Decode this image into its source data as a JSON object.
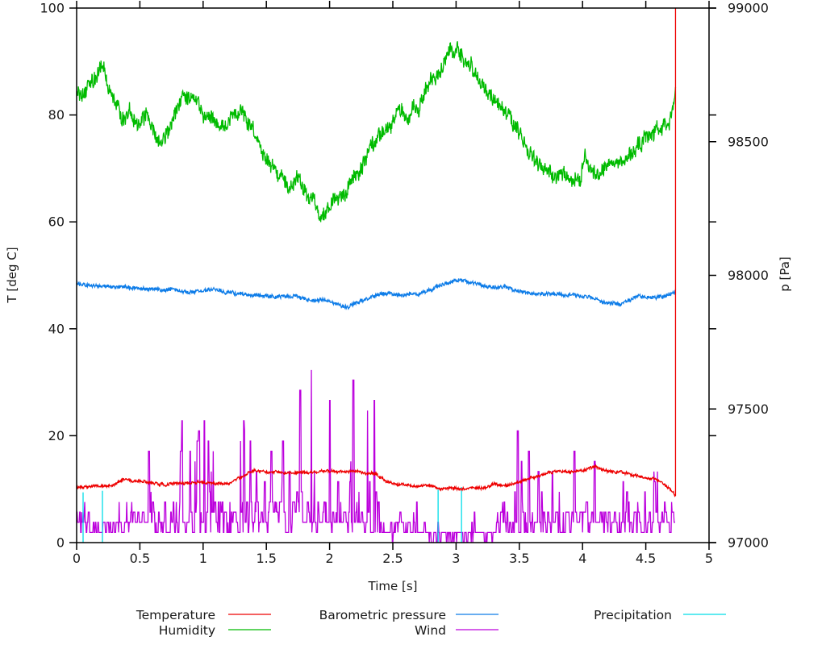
{
  "figure": {
    "background": "#ffffff",
    "text_color": "#1a1a1a",
    "axis_color": "#000000"
  },
  "chart_data": {
    "type": "line",
    "title": "",
    "xlabel": "Time [s]",
    "ylabel_left": "T [deg C]",
    "ylabel_right": "p [Pa]",
    "x_range": [
      0,
      5
    ],
    "x_ticks": [
      0,
      0.5,
      1,
      1.5,
      2,
      2.5,
      3,
      3.5,
      4,
      4.5,
      5
    ],
    "y_left_range": [
      0,
      100
    ],
    "y_left_ticks": [
      0,
      20,
      40,
      60,
      80,
      100
    ],
    "y_right_range": [
      97000,
      99000
    ],
    "y_right_ticks": [
      97000,
      97500,
      98000,
      98500,
      99000
    ],
    "grid": false,
    "legend_position": "below",
    "x_data_end": 4.735,
    "series": [
      {
        "name": "Wind",
        "color": "#bc00dd",
        "axis": "left",
        "render": "spiky",
        "seed": 1337,
        "dt": 0.004,
        "quantum": 1.9,
        "spike_prob": 0.3,
        "segments": [
          [
            0.0,
            0.1,
            3.5,
            9,
            0.25
          ],
          [
            0.1,
            0.35,
            2.5,
            8,
            0.2
          ],
          [
            0.35,
            0.42,
            3.0,
            26,
            0.1
          ],
          [
            0.42,
            0.62,
            4.5,
            24,
            0.22
          ],
          [
            0.62,
            0.75,
            3.0,
            18,
            0.18
          ],
          [
            0.75,
            1.0,
            5.0,
            34,
            0.26
          ],
          [
            1.0,
            1.3,
            4.5,
            20,
            0.24
          ],
          [
            1.3,
            1.62,
            5.0,
            21,
            0.26
          ],
          [
            1.62,
            1.8,
            5.5,
            28,
            0.26
          ],
          [
            1.8,
            2.12,
            5.0,
            30,
            0.24
          ],
          [
            2.12,
            2.42,
            4.5,
            28,
            0.22
          ],
          [
            2.42,
            2.6,
            2.5,
            14,
            0.15
          ],
          [
            2.6,
            2.8,
            2.0,
            9,
            0.15
          ],
          [
            2.8,
            3.08,
            1.2,
            5,
            0.12
          ],
          [
            3.08,
            3.32,
            1.8,
            13,
            0.12
          ],
          [
            3.32,
            3.52,
            3.5,
            23,
            0.18
          ],
          [
            3.52,
            4.0,
            4.0,
            19,
            0.22
          ],
          [
            4.0,
            4.35,
            4.0,
            18,
            0.22
          ],
          [
            4.35,
            4.6,
            3.5,
            17,
            0.18
          ],
          [
            4.6,
            4.735,
            3.5,
            9,
            0.22
          ]
        ]
      },
      {
        "name": "Precipitation",
        "color": "#00dde8",
        "axis": "left",
        "render": "impulses",
        "impulses": [
          [
            0.051,
            9.4
          ],
          [
            0.204,
            9.7
          ],
          [
            2.858,
            9.9
          ],
          [
            3.043,
            10.4
          ]
        ]
      },
      {
        "name": "Humidity",
        "color": "#00bb00",
        "axis": "left",
        "render": "noisy-line",
        "seed": 424242,
        "points": 1450,
        "walk": 1.0,
        "damp": 0.92,
        "jitter": 2.6,
        "keypoints": [
          [
            0,
            84.5
          ],
          [
            0.07,
            85.5
          ],
          [
            0.13,
            86
          ],
          [
            0.2,
            89.8
          ],
          [
            0.24,
            87
          ],
          [
            0.3,
            84
          ],
          [
            0.36,
            79
          ],
          [
            0.42,
            81
          ],
          [
            0.45,
            78.5
          ],
          [
            0.5,
            77.5
          ],
          [
            0.55,
            80
          ],
          [
            0.6,
            78
          ],
          [
            0.65,
            76
          ],
          [
            0.68,
            74
          ],
          [
            0.72,
            77
          ],
          [
            0.8,
            81.5
          ],
          [
            0.88,
            83
          ],
          [
            0.95,
            82.5
          ],
          [
            1.0,
            80
          ],
          [
            1.05,
            81
          ],
          [
            1.1,
            79.5
          ],
          [
            1.18,
            79
          ],
          [
            1.25,
            80.5
          ],
          [
            1.32,
            80.5
          ],
          [
            1.38,
            78
          ],
          [
            1.45,
            74
          ],
          [
            1.52,
            71
          ],
          [
            1.6,
            68.5
          ],
          [
            1.68,
            67
          ],
          [
            1.75,
            67.5
          ],
          [
            1.82,
            64.5
          ],
          [
            1.88,
            62
          ],
          [
            1.93,
            60
          ],
          [
            1.97,
            60.5
          ],
          [
            2.02,
            63
          ],
          [
            2.1,
            65
          ],
          [
            2.18,
            67.5
          ],
          [
            2.25,
            70
          ],
          [
            2.32,
            73.5
          ],
          [
            2.4,
            75.5
          ],
          [
            2.47,
            77
          ],
          [
            2.55,
            81
          ],
          [
            2.62,
            80
          ],
          [
            2.68,
            81
          ],
          [
            2.75,
            84
          ],
          [
            2.82,
            86.5
          ],
          [
            2.88,
            88.5
          ],
          [
            2.95,
            91
          ],
          [
            3.0,
            92
          ],
          [
            3.05,
            90.5
          ],
          [
            3.12,
            88.5
          ],
          [
            3.2,
            86
          ],
          [
            3.28,
            84
          ],
          [
            3.36,
            82
          ],
          [
            3.42,
            80
          ],
          [
            3.5,
            75.5
          ],
          [
            3.55,
            74
          ],
          [
            3.62,
            72
          ],
          [
            3.7,
            70
          ],
          [
            3.78,
            68.5
          ],
          [
            3.85,
            69.5
          ],
          [
            3.92,
            68
          ],
          [
            3.98,
            67.5
          ],
          [
            4.02,
            73
          ],
          [
            4.06,
            69
          ],
          [
            4.12,
            68
          ],
          [
            4.2,
            70
          ],
          [
            4.28,
            71
          ],
          [
            4.35,
            72
          ],
          [
            4.42,
            73.5
          ],
          [
            4.48,
            75
          ],
          [
            4.55,
            76
          ],
          [
            4.6,
            77
          ],
          [
            4.65,
            78
          ],
          [
            4.68,
            77.5
          ],
          [
            4.71,
            80
          ],
          [
            4.735,
            84.5
          ]
        ]
      },
      {
        "name": "Barometric pressure",
        "color": "#0d7ce8",
        "axis": "right",
        "render": "noisy-line",
        "seed": 98765,
        "points": 1450,
        "walk": 3.5,
        "damp": 0.9,
        "jitter": 13,
        "keypoints": [
          [
            0,
            97966
          ],
          [
            0.2,
            97960
          ],
          [
            0.4,
            97955
          ],
          [
            0.55,
            97950
          ],
          [
            0.7,
            97945
          ],
          [
            0.9,
            97938
          ],
          [
            1.0,
            97942
          ],
          [
            1.08,
            97948
          ],
          [
            1.15,
            97940
          ],
          [
            1.3,
            97928
          ],
          [
            1.45,
            97925
          ],
          [
            1.6,
            97920
          ],
          [
            1.75,
            97925
          ],
          [
            1.85,
            97900
          ],
          [
            1.95,
            97910
          ],
          [
            2.05,
            97895
          ],
          [
            2.15,
            97885
          ],
          [
            2.25,
            97905
          ],
          [
            2.33,
            97915
          ],
          [
            2.42,
            97932
          ],
          [
            2.55,
            97928
          ],
          [
            2.7,
            97932
          ],
          [
            2.8,
            97945
          ],
          [
            2.88,
            97962
          ],
          [
            2.95,
            97975
          ],
          [
            3.02,
            97985
          ],
          [
            3.1,
            97975
          ],
          [
            3.2,
            97965
          ],
          [
            3.3,
            97955
          ],
          [
            3.42,
            97952
          ],
          [
            3.5,
            97940
          ],
          [
            3.6,
            97935
          ],
          [
            3.68,
            97930
          ],
          [
            3.75,
            97935
          ],
          [
            3.85,
            97925
          ],
          [
            3.95,
            97928
          ],
          [
            4.05,
            97920
          ],
          [
            4.15,
            97900
          ],
          [
            4.22,
            97895
          ],
          [
            4.3,
            97890
          ],
          [
            4.4,
            97915
          ],
          [
            4.45,
            97925
          ],
          [
            4.5,
            97920
          ],
          [
            4.6,
            97915
          ],
          [
            4.65,
            97920
          ],
          [
            4.7,
            97935
          ],
          [
            4.735,
            97945
          ]
        ]
      },
      {
        "name": "Temperature",
        "color": "#ee0000",
        "axis": "left",
        "render": "noisy-line",
        "seed": 31415,
        "points": 1450,
        "walk": 0.18,
        "damp": 0.9,
        "jitter": 0.45,
        "end_spike": {
          "x": 4.735,
          "to": 100
        },
        "keypoints": [
          [
            0,
            10.4
          ],
          [
            0.15,
            10.6
          ],
          [
            0.3,
            10.8
          ],
          [
            0.38,
            11.9
          ],
          [
            0.45,
            11.6
          ],
          [
            0.55,
            11.4
          ],
          [
            0.65,
            10.9
          ],
          [
            0.8,
            11.0
          ],
          [
            0.95,
            11.3
          ],
          [
            1.1,
            11.1
          ],
          [
            1.2,
            11.3
          ],
          [
            1.3,
            12.2
          ],
          [
            1.4,
            13.4
          ],
          [
            1.5,
            13.1
          ],
          [
            1.6,
            13.3
          ],
          [
            1.7,
            12.9
          ],
          [
            1.8,
            13.2
          ],
          [
            1.95,
            13.4
          ],
          [
            2.1,
            13.3
          ],
          [
            2.2,
            13.5
          ],
          [
            2.3,
            13.1
          ],
          [
            2.38,
            12.6
          ],
          [
            2.45,
            11.3
          ],
          [
            2.52,
            10.9
          ],
          [
            2.65,
            10.6
          ],
          [
            2.8,
            10.5
          ],
          [
            2.95,
            10.0
          ],
          [
            3.1,
            10.0
          ],
          [
            3.2,
            10.3
          ],
          [
            3.3,
            11.0
          ],
          [
            3.4,
            10.6
          ],
          [
            3.5,
            11.2
          ],
          [
            3.6,
            12.3
          ],
          [
            3.7,
            12.8
          ],
          [
            3.8,
            13.4
          ],
          [
            3.9,
            13.2
          ],
          [
            4.0,
            13.3
          ],
          [
            4.1,
            14.2
          ],
          [
            4.2,
            13.4
          ],
          [
            4.3,
            13.2
          ],
          [
            4.42,
            12.4
          ],
          [
            4.55,
            11.9
          ],
          [
            4.62,
            11.3
          ],
          [
            4.68,
            10.3
          ],
          [
            4.72,
            9.2
          ],
          [
            4.735,
            8.4
          ]
        ]
      }
    ],
    "legend": {
      "items": [
        {
          "label": "Temperature",
          "color": "#ee0000",
          "row": 0,
          "col": 0
        },
        {
          "label": "Humidity",
          "color": "#00bb00",
          "row": 1,
          "col": 0
        },
        {
          "label": "Barometric pressure",
          "color": "#0d7ce8",
          "row": 0,
          "col": 1
        },
        {
          "label": "Wind",
          "color": "#bc00dd",
          "row": 1,
          "col": 1
        },
        {
          "label": "Precipitation",
          "color": "#00dde8",
          "row": 0,
          "col": 2
        }
      ]
    }
  }
}
